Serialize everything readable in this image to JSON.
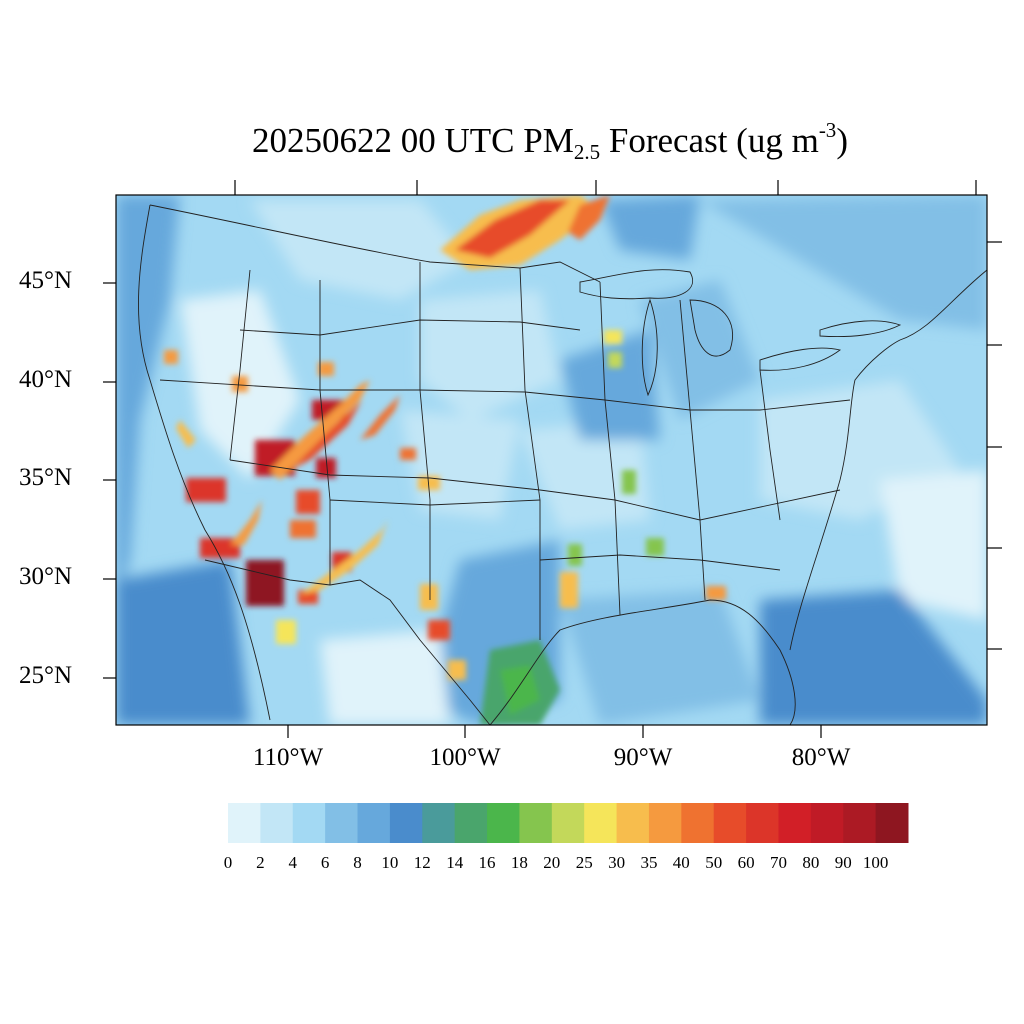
{
  "title": {
    "main": "20250622 00 UTC PM",
    "sub": "2.5",
    "after_sub": " Forecast (ug m",
    "sup": "-3",
    "end": ")"
  },
  "map": {
    "projection": "Lambert conformal (CONUS)",
    "lat_labels": [
      "45°N",
      "40°N",
      "35°N",
      "30°N",
      "25°N"
    ],
    "lon_labels": [
      "110°W",
      "100°W",
      "90°W",
      "80°W"
    ]
  },
  "colorbar": {
    "ticks": [
      "0",
      "2",
      "4",
      "6",
      "8",
      "10",
      "12",
      "14",
      "16",
      "18",
      "20",
      "25",
      "30",
      "35",
      "40",
      "50",
      "60",
      "70",
      "80",
      "90",
      "100"
    ],
    "colors": [
      "#e0f3fa",
      "#c2e6f6",
      "#a3d9f3",
      "#82bfe6",
      "#66a8dc",
      "#4a8ccc",
      "#4a9b9b",
      "#4aa56c",
      "#4bb64b",
      "#85c54e",
      "#c3d85a",
      "#f5e55a",
      "#f7bd4d",
      "#f59a3f",
      "#ef7230",
      "#e74c2a",
      "#dc3529",
      "#d21f27",
      "#c01b26",
      "#ac1a24",
      "#8e1620"
    ]
  }
}
